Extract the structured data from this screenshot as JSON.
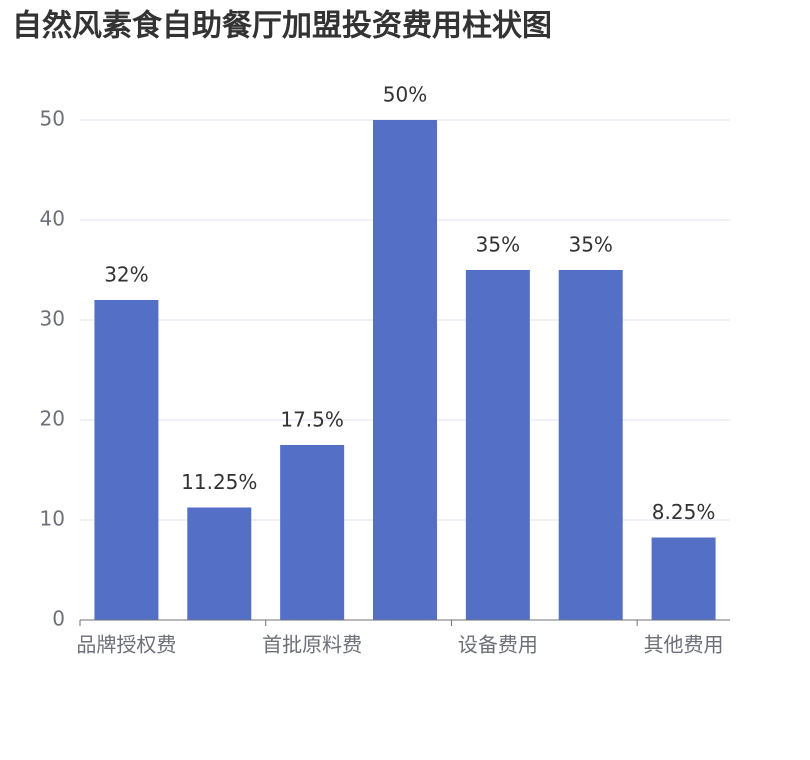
{
  "chart_data": {
    "type": "bar",
    "title": "自然风素食自助餐厅加盟投资费用柱状图",
    "categories": [
      "品牌授权费",
      null,
      "首批原料费",
      null,
      "设备费用",
      null,
      "其他费用"
    ],
    "values": [
      32,
      11.25,
      17.5,
      50,
      35,
      35,
      8.25
    ],
    "value_labels": [
      "32%",
      "11.25%",
      "17.5%",
      "50%",
      "35%",
      "35%",
      "8.25%"
    ],
    "color": "#5470c6",
    "ylim": [
      0,
      50
    ],
    "yticks": [
      0,
      10,
      20,
      30,
      40,
      50
    ],
    "grid": true
  }
}
